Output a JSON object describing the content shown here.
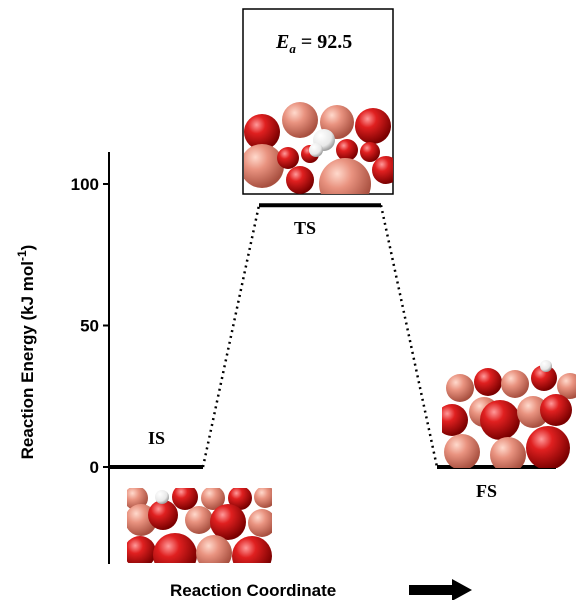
{
  "chart_data": {
    "type": "line",
    "title": "",
    "xlabel": "Reaction Coordinate",
    "ylabel": "Reaction Energy (kJ mol",
    "ylabel_sup": "-1",
    "ylabel_close": ")",
    "yticks": [
      0,
      50,
      100
    ],
    "ylim": [
      -35,
      112
    ],
    "states": [
      {
        "name": "IS",
        "energy": 0
      },
      {
        "name": "TS",
        "energy": 92.5
      },
      {
        "name": "FS",
        "energy": 0
      }
    ],
    "annotation": {
      "symbol": "E",
      "subscript": "a",
      "text": " = 92.5"
    }
  },
  "colors": {
    "oxygen": "#d81818",
    "copper": "#e99380",
    "hydrogen": "#ffffff",
    "line": "#000000"
  }
}
